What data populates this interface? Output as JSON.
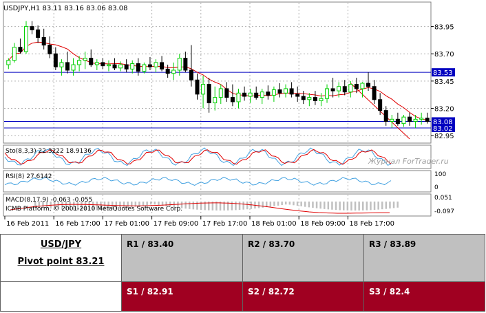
{
  "chart_data": {
    "type": "candlestick",
    "symbol_header": "USDJPY,H1  83.11 83.16 83.06 83.08",
    "price_ticks": [
      "83.95",
      "83.70",
      "83.45",
      "83.20",
      "82.95"
    ],
    "price_tick_values": [
      83.95,
      83.7,
      83.45,
      83.2,
      82.95
    ],
    "price_range": [
      82.9,
      84.08
    ],
    "level_lines": [
      {
        "value": 83.53,
        "label": "83.53"
      },
      {
        "value": 83.08,
        "label": "83.08"
      },
      {
        "value": 83.02,
        "label": "83.02"
      }
    ],
    "time_labels": [
      "16 Feb 2011",
      "16 Feb 17:00",
      "17 Feb 01:00",
      "17 Feb 09:00",
      "17 Feb 17:00",
      "18 Feb 01:00",
      "18 Feb 09:00",
      "18 Feb 17:00"
    ],
    "candles": [
      [
        83.6,
        83.66,
        83.56,
        83.64
      ],
      [
        83.64,
        83.8,
        83.62,
        83.76
      ],
      [
        83.76,
        83.84,
        83.7,
        83.72
      ],
      [
        83.72,
        84.0,
        83.7,
        83.95
      ],
      [
        83.95,
        84.0,
        83.88,
        83.92
      ],
      [
        83.92,
        83.96,
        83.8,
        83.85
      ],
      [
        83.85,
        83.93,
        83.74,
        83.78
      ],
      [
        83.78,
        83.86,
        83.66,
        83.7
      ],
      [
        83.7,
        83.76,
        83.55,
        83.58
      ],
      [
        83.58,
        83.65,
        83.5,
        83.62
      ],
      [
        83.62,
        83.72,
        83.52,
        83.55
      ],
      [
        83.55,
        83.66,
        83.5,
        83.6
      ],
      [
        83.6,
        83.68,
        83.54,
        83.64
      ],
      [
        83.64,
        83.72,
        83.56,
        83.66
      ],
      [
        83.66,
        83.74,
        83.58,
        83.6
      ],
      [
        83.6,
        83.65,
        83.55,
        83.62
      ],
      [
        83.62,
        83.66,
        83.56,
        83.59
      ],
      [
        83.59,
        83.64,
        83.54,
        83.6
      ],
      [
        83.6,
        83.66,
        83.55,
        83.57
      ],
      [
        83.57,
        83.63,
        83.54,
        83.6
      ],
      [
        83.6,
        83.65,
        83.53,
        83.56
      ],
      [
        83.56,
        83.64,
        83.52,
        83.61
      ],
      [
        83.61,
        83.66,
        83.5,
        83.54
      ],
      [
        83.54,
        83.62,
        83.52,
        83.6
      ],
      [
        83.6,
        83.67,
        83.55,
        83.58
      ],
      [
        83.58,
        83.65,
        83.53,
        83.62
      ],
      [
        83.62,
        83.68,
        83.54,
        83.56
      ],
      [
        83.56,
        83.6,
        83.48,
        83.52
      ],
      [
        83.52,
        83.62,
        83.46,
        83.55
      ],
      [
        83.55,
        83.7,
        83.5,
        83.66
      ],
      [
        83.66,
        83.72,
        83.53,
        83.55
      ],
      [
        83.55,
        83.78,
        83.4,
        83.46
      ],
      [
        83.46,
        83.52,
        83.28,
        83.33
      ],
      [
        83.33,
        83.5,
        83.2,
        83.42
      ],
      [
        83.42,
        83.48,
        83.16,
        83.25
      ],
      [
        83.25,
        83.4,
        83.18,
        83.3
      ],
      [
        83.3,
        83.42,
        83.24,
        83.38
      ],
      [
        83.38,
        83.44,
        83.26,
        83.3
      ],
      [
        83.3,
        83.42,
        83.22,
        83.26
      ],
      [
        83.26,
        83.38,
        83.2,
        83.34
      ],
      [
        83.34,
        83.4,
        83.27,
        83.31
      ],
      [
        83.31,
        83.38,
        83.25,
        83.34
      ],
      [
        83.34,
        83.4,
        83.28,
        83.3
      ],
      [
        83.3,
        83.38,
        83.24,
        83.35
      ],
      [
        83.35,
        83.41,
        83.28,
        83.32
      ],
      [
        83.32,
        83.4,
        83.26,
        83.37
      ],
      [
        83.37,
        83.43,
        83.3,
        83.34
      ],
      [
        83.34,
        83.42,
        83.3,
        83.38
      ],
      [
        83.38,
        83.44,
        83.3,
        83.33
      ],
      [
        83.33,
        83.4,
        83.26,
        83.31
      ],
      [
        83.31,
        83.36,
        83.24,
        83.28
      ],
      [
        83.28,
        83.34,
        83.22,
        83.3
      ],
      [
        83.3,
        83.36,
        83.23,
        83.27
      ],
      [
        83.27,
        83.34,
        83.22,
        83.29
      ],
      [
        83.29,
        83.42,
        83.25,
        83.38
      ],
      [
        83.38,
        83.48,
        83.3,
        83.36
      ],
      [
        83.36,
        83.44,
        83.3,
        83.4
      ],
      [
        83.4,
        83.46,
        83.32,
        83.35
      ],
      [
        83.35,
        83.45,
        83.3,
        83.42
      ],
      [
        83.42,
        83.48,
        83.34,
        83.38
      ],
      [
        83.38,
        83.44,
        83.3,
        83.43
      ],
      [
        83.43,
        83.53,
        83.36,
        83.4
      ],
      [
        83.4,
        83.46,
        83.24,
        83.28
      ],
      [
        83.28,
        83.34,
        83.14,
        83.18
      ],
      [
        83.18,
        83.22,
        83.04,
        83.08
      ],
      [
        83.08,
        83.14,
        83.02,
        83.1
      ],
      [
        83.1,
        83.16,
        83.04,
        83.06
      ],
      [
        83.06,
        83.14,
        83.03,
        83.12
      ],
      [
        83.12,
        83.16,
        83.04,
        83.08
      ],
      [
        83.08,
        83.14,
        83.02,
        83.1
      ],
      [
        83.1,
        83.16,
        83.05,
        83.11
      ],
      [
        83.11,
        83.16,
        83.06,
        83.08
      ]
    ],
    "indicators": [
      {
        "label": "Sto(8,3,3) 22.3222 18.9136",
        "scale": [
          "",
          ""
        ]
      },
      {
        "label": "RSI(8) 27.6142",
        "scale": [
          "100",
          "0"
        ]
      },
      {
        "label": "MACD(8,17,9) -0.063 -0.055",
        "scale": [
          "0.051",
          "-0.097"
        ]
      }
    ],
    "platform_label": "ICMB Platform, © 2001-2010 MetaQuotes Software Corp.",
    "watermark": "Журнал ForTrader.ru",
    "colors": {
      "bull": "#00d000",
      "bear": "#000000",
      "ma": "#e00000",
      "level": "#0000c0",
      "label_bg": "#0000c0"
    }
  },
  "levels_table": {
    "pair": "USD/JPY",
    "pivot": "Pivot point 83.21",
    "resistance": [
      "R1 / 83.40",
      "R2 / 83.70",
      "R3 / 83.89"
    ],
    "support": [
      "S1 / 82.91",
      "S2 / 82.72",
      "S3 / 82.4"
    ]
  }
}
